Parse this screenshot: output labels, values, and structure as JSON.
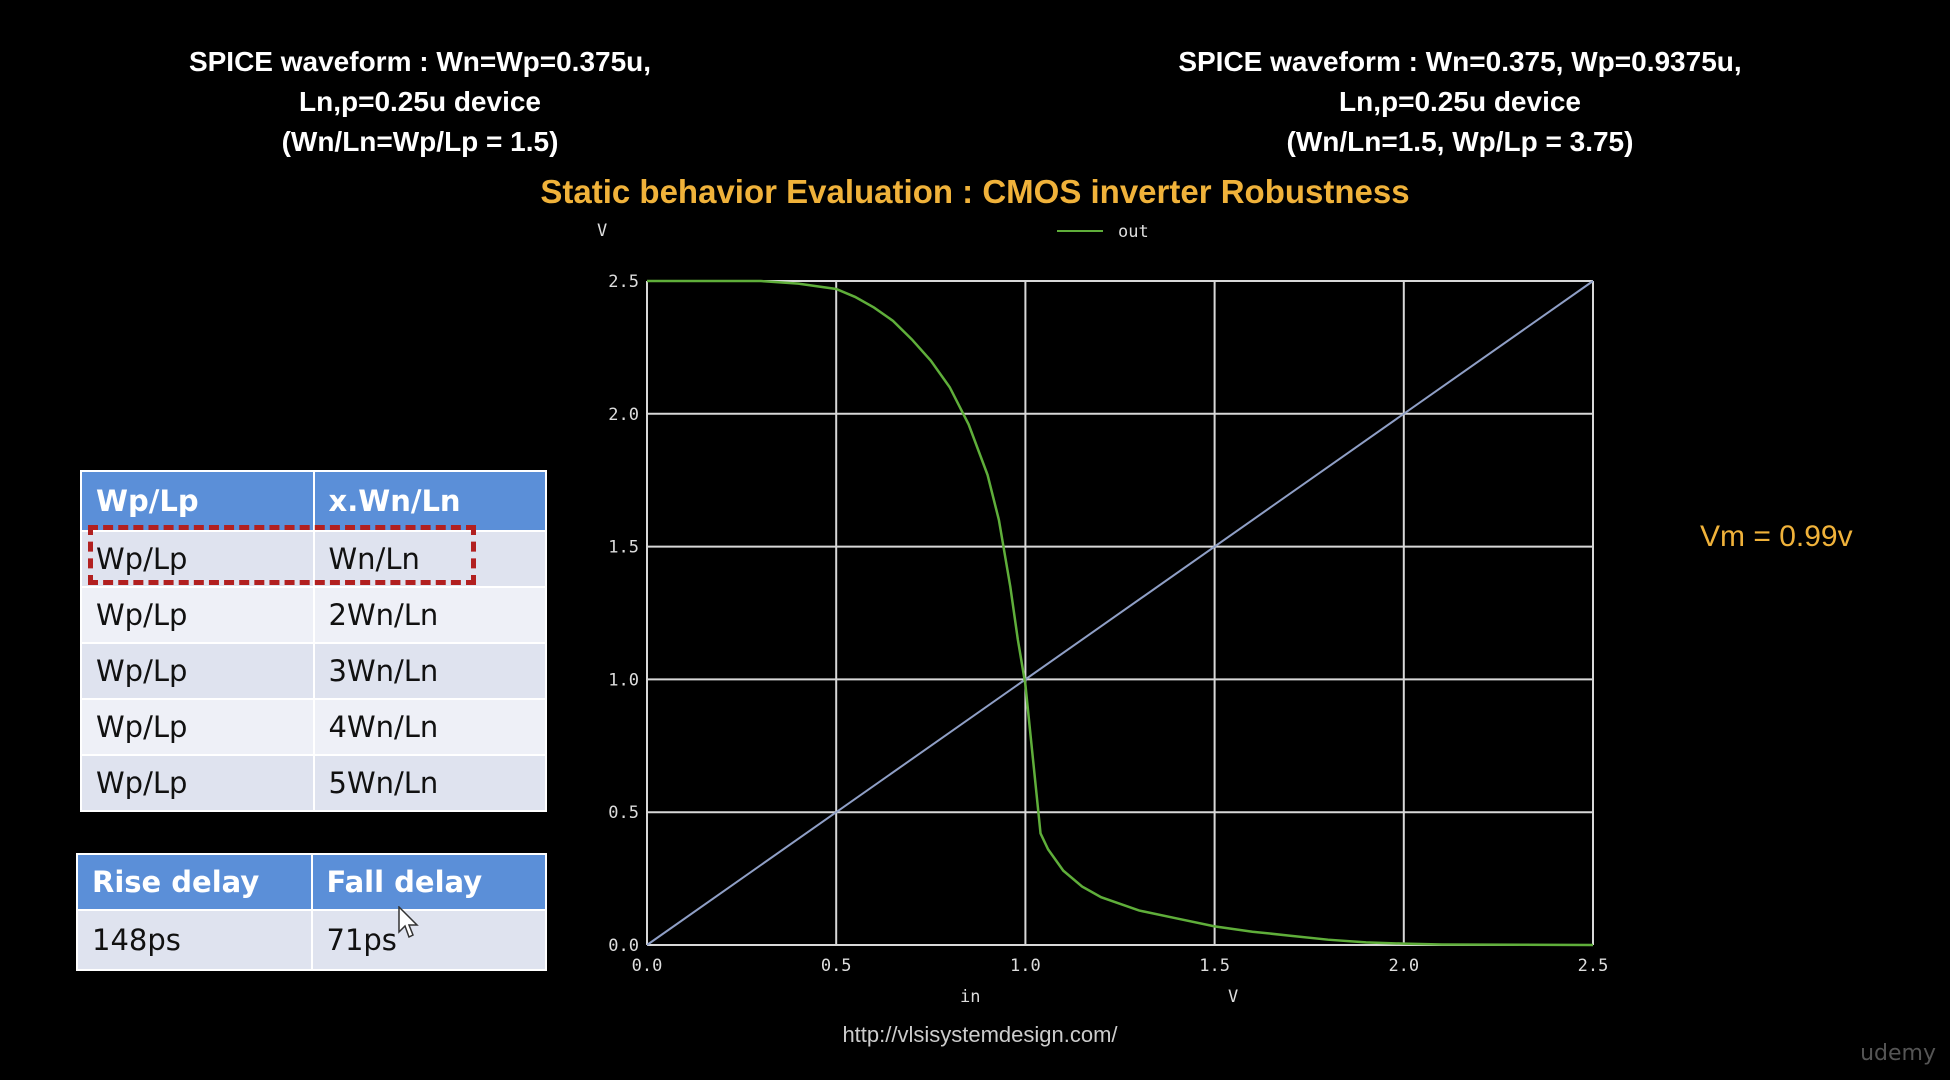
{
  "header_left": {
    "line1": "SPICE waveform : Wn=Wp=0.375u,",
    "line2": "Ln,p=0.25u device",
    "line3": "(Wn/Ln=Wp/Lp = 1.5)"
  },
  "header_right": {
    "line1": "SPICE waveform : Wn=0.375, Wp=0.9375u,",
    "line2": "Ln,p=0.25u device",
    "line3": "(Wn/Ln=1.5, Wp/Lp = 3.75)"
  },
  "title": "Static behavior Evaluation : CMOS inverter Robustness",
  "vm_label": "Vm = 0.99v",
  "url": "http://vlsisystemdesign.com/",
  "brand": "udemy",
  "ratio_table": {
    "headers": [
      "Wp/Lp",
      "x.Wn/Ln"
    ],
    "rows": [
      [
        "Wp/Lp",
        "Wn/Ln"
      ],
      [
        "Wp/Lp",
        "2Wn/Ln"
      ],
      [
        "Wp/Lp",
        "3Wn/Ln"
      ],
      [
        "Wp/Lp",
        "4Wn/Ln"
      ],
      [
        "Wp/Lp",
        "5Wn/Ln"
      ]
    ],
    "highlighted_row": 0
  },
  "delay_table": {
    "headers": [
      "Rise delay",
      "Fall delay"
    ],
    "rows": [
      [
        "148ps",
        "71ps"
      ]
    ]
  },
  "colors": {
    "title": "#f0b23a",
    "table_header": "#5b8fd8",
    "highlight": "#b22020",
    "curve": "#5fae3a",
    "reference": "#8f9fc6",
    "grid": "#d8d8d8"
  },
  "chart_data": {
    "type": "line",
    "y_axis_unit": "V",
    "x_axis_label": "in",
    "x_axis_unit": "V",
    "legend": "out",
    "legend_position": "top-center",
    "xlim": [
      0,
      2.5
    ],
    "ylim": [
      0,
      2.5
    ],
    "x_ticks": [
      "0.0",
      "0.5",
      "1.0",
      "1.5",
      "2.0",
      "2.5"
    ],
    "y_ticks": [
      "0.0",
      "0.5",
      "1.0",
      "1.5",
      "2.0",
      "2.5"
    ],
    "grid": true,
    "series": [
      {
        "name": "out",
        "x": [
          0,
          0.3,
          0.4,
          0.5,
          0.55,
          0.6,
          0.65,
          0.7,
          0.75,
          0.8,
          0.85,
          0.9,
          0.93,
          0.96,
          0.98,
          1.0,
          1.02,
          1.04,
          1.06,
          1.1,
          1.15,
          1.2,
          1.3,
          1.4,
          1.5,
          1.6,
          1.7,
          1.8,
          1.9,
          2.0,
          2.1,
          2.5
        ],
        "y": [
          2.5,
          2.5,
          2.49,
          2.47,
          2.44,
          2.4,
          2.35,
          2.28,
          2.2,
          2.1,
          1.96,
          1.77,
          1.6,
          1.35,
          1.15,
          0.98,
          0.7,
          0.42,
          0.36,
          0.28,
          0.22,
          0.18,
          0.13,
          0.1,
          0.07,
          0.05,
          0.035,
          0.02,
          0.01,
          0.005,
          0.002,
          0.0
        ]
      },
      {
        "x": [
          0,
          2.5
        ],
        "y": [
          0,
          2.5
        ]
      }
    ]
  }
}
